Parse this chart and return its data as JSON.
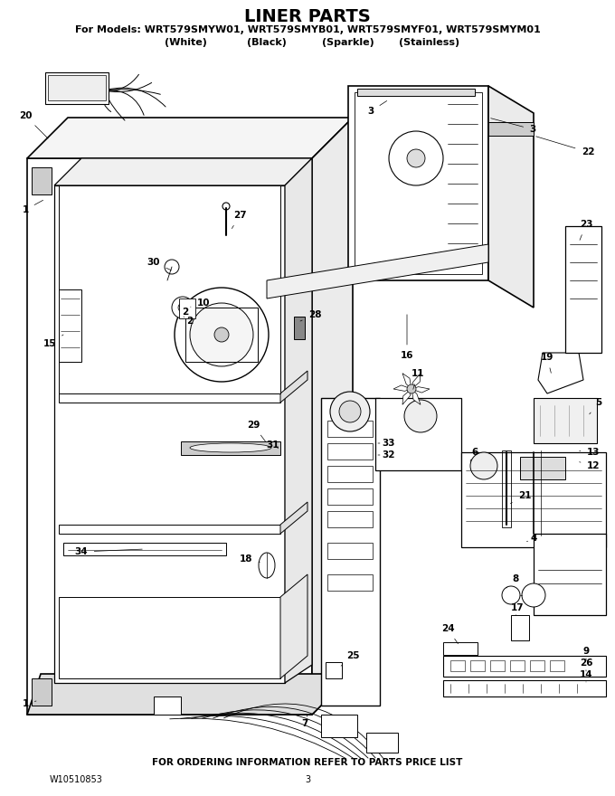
{
  "title": "LINER PARTS",
  "subtitle_line1": "For Models: WRT579SMYW01, WRT579SMYB01, WRT579SMYF01, WRT579SMYM01",
  "subtitle_line2_parts": [
    "(White)",
    "(Black)",
    "(Sparkle)",
    "(Stainless)"
  ],
  "footer_note": "FOR ORDERING INFORMATION REFER TO PARTS PRICE LIST",
  "part_number": "W10510853",
  "page_number": "3",
  "title_fontsize": 14,
  "subtitle_fontsize": 8.5,
  "footer_fontsize": 7,
  "bg_color": "#ffffff",
  "text_color": "#000000",
  "fig_width": 6.8,
  "fig_height": 8.8,
  "dpi": 100
}
